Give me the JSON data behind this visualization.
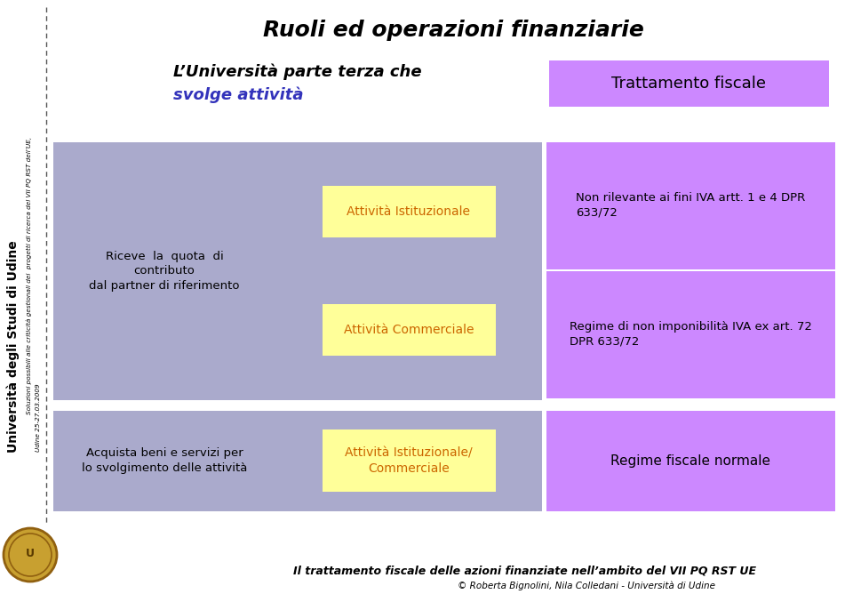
{
  "title": "Ruoli ed operazioni finanziarie",
  "subtitle1": "L’Università parte terza che",
  "subtitle2": "svolge attività",
  "subtitle2_color": "#3333bb",
  "trattamento_label": "Trattamento fiscale",
  "trattamento_bg": "#cc88ff",
  "row1_outer_bg": "#aaaacc",
  "row1_left_text": "Riceve  la  quota  di\ncontributo\ndal partner di riferimento",
  "row1_mid1_inner_bg": "#ffff99",
  "row1_mid1_text": "Attività Istituzionale",
  "row1_mid1_text_color": "#cc6600",
  "row1_mid2_inner_bg": "#ffff99",
  "row1_mid2_text": "Attività Commerciale",
  "row1_mid2_text_color": "#cc6600",
  "row1_right1_bg": "#cc88ff",
  "row1_right1_text": "Non rilevante ai fini IVA artt. 1 e 4 DPR\n633/72",
  "row1_right2_bg": "#cc88ff",
  "row1_right2_text": "Regime di non imponibilità IVA ex art. 72\nDPR 633/72",
  "row2_outer_bg": "#aaaacc",
  "row2_left_text": "Acquista beni e servizi per\nlo svolgimento delle attività",
  "row2_mid_inner_bg": "#ffff99",
  "row2_mid_text": "Attività Istituzionale/\nCommerciale",
  "row2_mid_text_color": "#cc6600",
  "row2_right_bg": "#cc88ff",
  "row2_right_text": "Regime fiscale normale",
  "sidebar_main": "Università degli Studi di Udine",
  "sidebar_sub1": "Soluzioni possibili alle criticità gestionali dei  progetti di ricerca del VII PQ RST dell’UE,",
  "sidebar_sub2": "Udine 25-27.03.2009",
  "footer_text1": "Il trattamento fiscale delle azioni finanziate nell’ambito del VII PQ RST UE",
  "footer_text2": "© Roberta Bignolini, Nila Colledani - Università di Udine",
  "bg_color": "#ffffff",
  "dashed_line_color": "#555555",
  "white": "#ffffff"
}
